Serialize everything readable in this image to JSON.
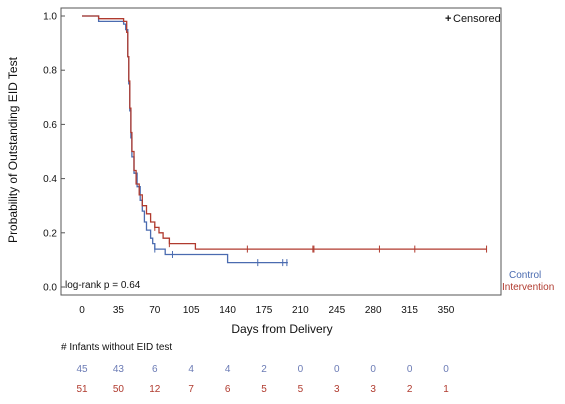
{
  "chart_data": {
    "type": "line",
    "chart_subtype": "kaplan-meier",
    "xlabel": "Days from Delivery",
    "ylabel": "Probability of Outstanding EID Test",
    "xticks": [
      0,
      35,
      70,
      105,
      140,
      175,
      210,
      245,
      280,
      315,
      350
    ],
    "yticks": [
      0.0,
      0.2,
      0.4,
      0.6,
      0.8,
      1.0
    ],
    "ylim": [
      0,
      1
    ],
    "grid": false,
    "legend": {
      "symbol": "+",
      "label": "Censored",
      "placement": "top-right"
    },
    "annotation": "log-rank p = 0.64",
    "series": [
      {
        "name": "Control",
        "color": "#4a6bb0",
        "steps": [
          [
            0,
            1.0
          ],
          [
            16,
            0.98
          ],
          [
            40,
            0.97
          ],
          [
            42,
            0.95
          ],
          [
            44,
            0.85
          ],
          [
            45,
            0.75
          ],
          [
            46,
            0.65
          ],
          [
            47,
            0.55
          ],
          [
            48,
            0.48
          ],
          [
            50,
            0.42
          ],
          [
            53,
            0.37
          ],
          [
            56,
            0.32
          ],
          [
            58,
            0.28
          ],
          [
            60,
            0.24
          ],
          [
            62,
            0.21
          ],
          [
            66,
            0.18
          ],
          [
            68,
            0.16
          ],
          [
            70,
            0.14
          ],
          [
            80,
            0.12
          ],
          [
            140,
            0.09
          ],
          [
            198,
            0.09
          ]
        ],
        "censored": [
          [
            70,
            0.14
          ],
          [
            87,
            0.12
          ],
          [
            169,
            0.09
          ],
          [
            193,
            0.09
          ],
          [
            197,
            0.09
          ]
        ]
      },
      {
        "name": "Intervention",
        "color": "#b03a2e",
        "steps": [
          [
            0,
            1.0
          ],
          [
            16,
            0.99
          ],
          [
            40,
            0.98
          ],
          [
            43,
            0.94
          ],
          [
            44,
            0.85
          ],
          [
            45,
            0.76
          ],
          [
            46,
            0.66
          ],
          [
            47,
            0.57
          ],
          [
            48,
            0.5
          ],
          [
            50,
            0.43
          ],
          [
            52,
            0.38
          ],
          [
            55,
            0.34
          ],
          [
            58,
            0.3
          ],
          [
            62,
            0.27
          ],
          [
            66,
            0.24
          ],
          [
            70,
            0.22
          ],
          [
            74,
            0.2
          ],
          [
            78,
            0.18
          ],
          [
            84,
            0.16
          ],
          [
            109,
            0.14
          ],
          [
            389,
            0.14
          ]
        ],
        "censored": [
          [
            70,
            0.22
          ],
          [
            84,
            0.16
          ],
          [
            159,
            0.14
          ],
          [
            222,
            0.14
          ],
          [
            223,
            0.14
          ],
          [
            286,
            0.14
          ],
          [
            320,
            0.14
          ],
          [
            389,
            0.14
          ]
        ]
      }
    ],
    "risk_table": {
      "title": "# Infants without EID test",
      "timepoints": [
        0,
        35,
        70,
        105,
        140,
        175,
        210,
        245,
        280,
        315,
        350
      ],
      "rows": [
        {
          "name": "Control",
          "color": "#6b7bb5",
          "values": [
            45,
            43,
            6,
            4,
            4,
            2,
            0,
            0,
            0,
            0,
            0
          ]
        },
        {
          "name": "Intervention",
          "color": "#b03a2e",
          "values": [
            51,
            50,
            12,
            7,
            6,
            5,
            5,
            3,
            3,
            2,
            1
          ]
        }
      ]
    }
  }
}
